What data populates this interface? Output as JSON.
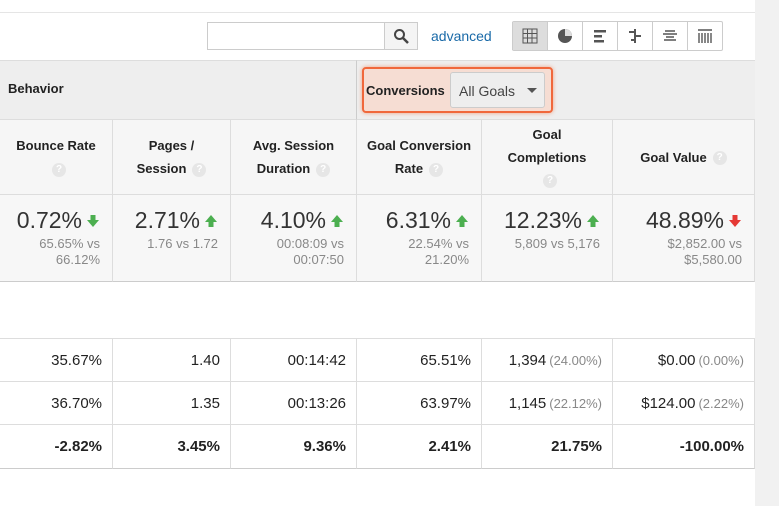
{
  "toolbar": {
    "advanced_link": "advanced"
  },
  "group_header": {
    "behavior": "Behavior",
    "conversions": "Conversions",
    "goal_select": "All Goals"
  },
  "columns": [
    {
      "label": [
        "Bounce Rate"
      ],
      "summary": {
        "value": "0.72%",
        "compare": "65.65% vs 66.12%",
        "trend": "down",
        "trend_color": "#4caf50"
      }
    },
    {
      "label": [
        "Pages /",
        "Session"
      ],
      "summary": {
        "value": "2.71%",
        "compare": "1.76 vs 1.72",
        "trend": "up",
        "trend_color": "#4caf50"
      }
    },
    {
      "label": [
        "Avg. Session",
        "Duration"
      ],
      "summary": {
        "value": "4.10%",
        "compare": "00:08:09 vs 00:07:50",
        "trend": "up",
        "trend_color": "#4caf50"
      }
    },
    {
      "label": [
        "Goal Conversion",
        "Rate"
      ],
      "summary": {
        "value": "6.31%",
        "compare": "22.54% vs 21.20%",
        "trend": "up",
        "trend_color": "#4caf50"
      }
    },
    {
      "label": [
        "Goal",
        "Completions"
      ],
      "summary": {
        "value": "12.23%",
        "compare": "5,809 vs 5,176",
        "trend": "up",
        "trend_color": "#4caf50"
      }
    },
    {
      "label": [
        "Goal Value"
      ],
      "summary": {
        "value": "48.89%",
        "compare": "$2,852.00 vs $5,580.00",
        "trend": "down",
        "trend_color": "#e53935"
      }
    }
  ],
  "rows": [
    {
      "bold": false,
      "cells": [
        {
          "text": "35.67%"
        },
        {
          "text": "1.40"
        },
        {
          "text": "00:14:42"
        },
        {
          "text": "65.51%"
        },
        {
          "text": "1,394",
          "share": "(24.00%)"
        },
        {
          "text": "$0.00",
          "share": "(0.00%)"
        }
      ]
    },
    {
      "bold": false,
      "cells": [
        {
          "text": "36.70%"
        },
        {
          "text": "1.35"
        },
        {
          "text": "00:13:26"
        },
        {
          "text": "63.97%"
        },
        {
          "text": "1,145",
          "share": "(22.12%)"
        },
        {
          "text": "$124.00",
          "share": "(2.22%)"
        }
      ]
    },
    {
      "bold": true,
      "cells": [
        {
          "text": "-2.82%"
        },
        {
          "text": "3.45%"
        },
        {
          "text": "9.36%"
        },
        {
          "text": "2.41%"
        },
        {
          "text": "21.75%"
        },
        {
          "text": "-100.00%"
        }
      ]
    }
  ]
}
